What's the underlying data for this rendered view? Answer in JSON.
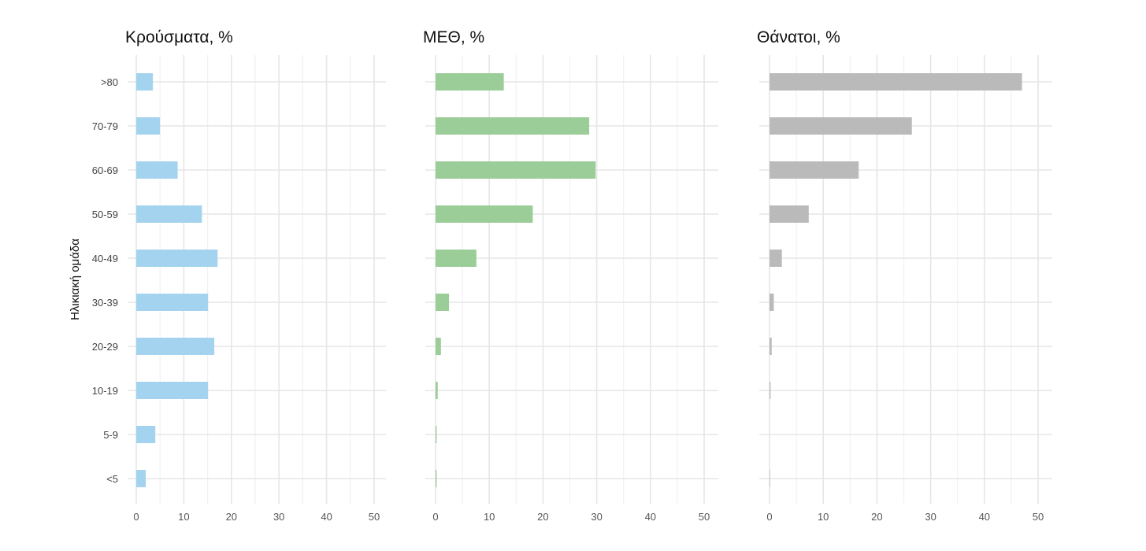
{
  "chart_data": {
    "type": "bar",
    "orientation": "horizontal",
    "ylabel": "Ηλικιακή ομάδα",
    "categories": [
      ">80",
      "70-79",
      "60-69",
      "50-59",
      "40-49",
      "30-39",
      "20-29",
      "10-19",
      "5-9",
      "<5"
    ],
    "xlim": [
      0,
      50
    ],
    "x_ticks": [
      0,
      10,
      20,
      30,
      40,
      50
    ],
    "grid": true,
    "panels": [
      {
        "title": "Κρούσματα, %",
        "color": "#a3d3ee",
        "values": [
          3.5,
          5.0,
          8.7,
          13.8,
          17.1,
          15.1,
          16.4,
          15.1,
          4.0,
          2.0
        ]
      },
      {
        "title": "ΜΕΘ, %",
        "color": "#9bcd98",
        "values": [
          12.7,
          28.6,
          29.8,
          18.1,
          7.6,
          2.5,
          1.0,
          0.4,
          0.2,
          0.2
        ]
      },
      {
        "title": "Θάνατοι, %",
        "color": "#bababa",
        "values": [
          47.0,
          26.5,
          16.6,
          7.3,
          2.3,
          0.8,
          0.4,
          0.2,
          0.0,
          0.1
        ]
      }
    ]
  }
}
